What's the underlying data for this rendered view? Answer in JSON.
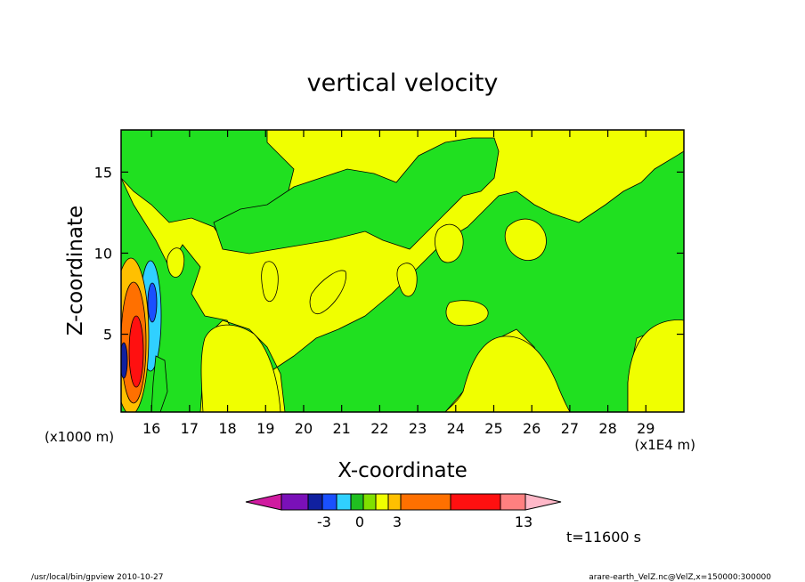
{
  "chart_data": {
    "type": "heatmap",
    "title": "vertical velocity",
    "xlabel": "X-coordinate",
    "ylabel": "Z-coordinate",
    "x_unit_left": "(x1000 m)",
    "x_unit_right": "(x1E4 m)",
    "xlim": [
      15.2,
      30
    ],
    "ylim": [
      0.2,
      17.6
    ],
    "x_ticks": [
      "16",
      "17",
      "18",
      "19",
      "20",
      "21",
      "22",
      "23",
      "24",
      "25",
      "26",
      "27",
      "28",
      "29"
    ],
    "y_ticks": [
      "5",
      "10",
      "15"
    ],
    "time_label": "t=11600 s",
    "colorbar": {
      "labels": [
        "-3",
        "0",
        "3",
        "13"
      ],
      "colors": [
        "#d01ba0",
        "#7a10b8",
        "#1020a0",
        "#1a50ff",
        "#30d0ff",
        "#20c020",
        "#80e000",
        "#f0ff00",
        "#ffc000",
        "#ff7000",
        "#ff1010",
        "#ff8080",
        "#ffb8c8"
      ]
    },
    "colors": {
      "background_positive": "#f0ff00",
      "background_near_zero": "#20e020"
    }
  },
  "footer": {
    "left": "/usr/local/bin/gpview  2010-10-27",
    "right": "arare-earth_VelZ.nc@VelZ,x=150000:300000"
  }
}
